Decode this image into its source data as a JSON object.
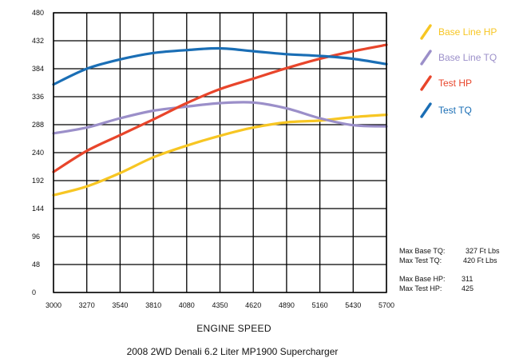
{
  "chart_data": {
    "type": "line",
    "title": "2008 2WD Denali 6.2 Liter MP1900 Supercharger",
    "xlabel": "ENGINE SPEED",
    "ylabel": "",
    "x_ticks": [
      "3000",
      "3270",
      "3540",
      "3810",
      "4080",
      "4350",
      "4620",
      "4890",
      "5160",
      "5430",
      "5700"
    ],
    "y_ticks": [
      "0",
      "48",
      "96",
      "144",
      "192",
      "240",
      "288",
      "336",
      "384",
      "432",
      "480"
    ],
    "xlim": [
      3000,
      5700
    ],
    "ylim": [
      0,
      480
    ],
    "grid": true,
    "legend_position": "right",
    "x": [
      3000,
      3270,
      3540,
      3810,
      4080,
      4350,
      4620,
      4890,
      5160,
      5430,
      5700
    ],
    "series": [
      {
        "name": "Base Line HP",
        "color": "#f7c623",
        "values": [
          167,
          182,
          205,
          232,
          252,
          269,
          283,
          292,
          295,
          301,
          305
        ]
      },
      {
        "name": "Base Line TQ",
        "color": "#9b8fc9",
        "values": [
          273,
          283,
          299,
          312,
          319,
          325,
          326,
          316,
          299,
          287,
          285
        ]
      },
      {
        "name": "Test HP",
        "color": "#e8452b",
        "values": [
          207,
          243,
          270,
          297,
          325,
          349,
          367,
          385,
          401,
          414,
          425
        ]
      },
      {
        "name": "Test TQ",
        "color": "#1a6eb5",
        "values": [
          357,
          384,
          400,
          411,
          416,
          419,
          414,
          409,
          406,
          401,
          392
        ]
      }
    ],
    "annotations": [
      {
        "label": "Max Base TQ:",
        "value": "327 Ft Lbs"
      },
      {
        "label": "Max Test TQ:",
        "value": "420  Ft Lbs"
      },
      {
        "label": "Max Base HP:",
        "value": "311"
      },
      {
        "label": "Max Test  HP:",
        "value": "425"
      }
    ]
  }
}
